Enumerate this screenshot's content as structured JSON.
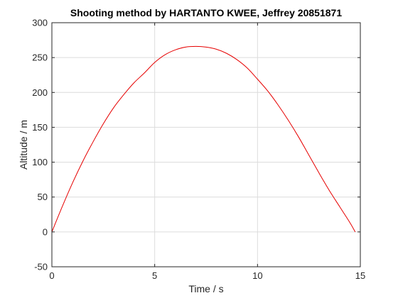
{
  "chart_data": {
    "type": "line",
    "title": "Shooting method by HARTANTO KWEE, Jeffrey 20851871",
    "xlabel": "Time / s",
    "ylabel": "Altitude / m",
    "xlim": [
      0,
      15
    ],
    "ylim": [
      -50,
      300
    ],
    "xticks": [
      0,
      5,
      10,
      15
    ],
    "yticks": [
      -50,
      0,
      50,
      100,
      150,
      200,
      250,
      300
    ],
    "grid": true,
    "series": [
      {
        "color": "#e60000",
        "x": [
          0,
          0.5,
          1.0,
          1.5,
          2.0,
          2.5,
          3.0,
          3.5,
          4.0,
          4.5,
          5.0,
          5.5,
          6.0,
          6.5,
          7.0,
          7.5,
          8.0,
          8.5,
          9.0,
          9.5,
          10.0,
          10.5,
          11.0,
          11.5,
          12.0,
          12.5,
          13.0,
          13.5,
          14.0,
          14.5,
          14.75
        ],
        "y": [
          0,
          36,
          70,
          101,
          129,
          155,
          178,
          197,
          214,
          228,
          243,
          254,
          261,
          265,
          266,
          265,
          262,
          256,
          247,
          235,
          219,
          202,
          182,
          160,
          136,
          110,
          84,
          59,
          36,
          13,
          0
        ]
      }
    ]
  }
}
